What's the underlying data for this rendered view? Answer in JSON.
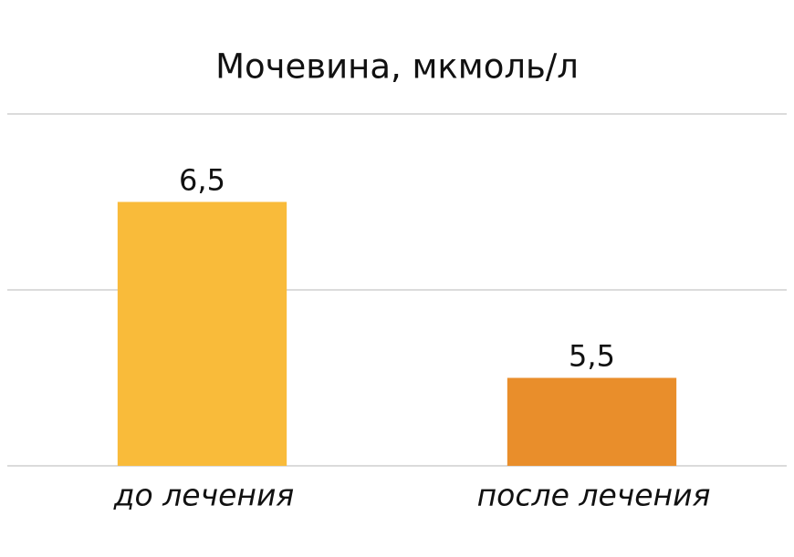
{
  "chart_data": {
    "type": "bar",
    "title": "Мочевина, мкмоль/л",
    "categories": [
      "до лечения",
      "после лечения"
    ],
    "values": [
      6.5,
      5.5
    ],
    "value_labels": [
      "6,5",
      "5,5"
    ],
    "colors": [
      "#f9bb3a",
      "#e98e2b"
    ],
    "ylim": [
      5,
      7
    ],
    "yticks": [
      5,
      6,
      7
    ],
    "grid": true
  }
}
